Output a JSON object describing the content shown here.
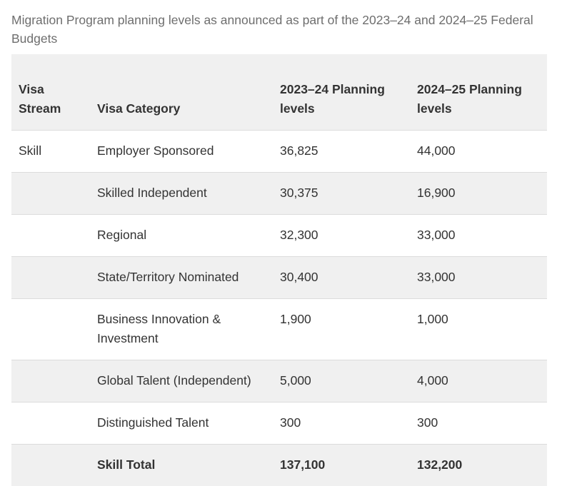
{
  "caption": "Migration Program planning levels as announced as part of the 2023–24 and 2024–25 Federal Budgets",
  "table": {
    "headers": [
      "Visa Stream",
      "Visa Category",
      "2023–24 Planning levels",
      "2024–25 Planning levels"
    ],
    "rows": [
      [
        "Skill",
        "Employer Sponsored",
        "36,825",
        "44,000"
      ],
      [
        "",
        "Skilled Independent",
        "30,375",
        "16,900"
      ],
      [
        "",
        "Regional",
        "32,300",
        "33,000"
      ],
      [
        "",
        "State/Territory Nominated",
        "30,400",
        "33,000"
      ],
      [
        "",
        "Business Innovation & Investment",
        "1,900",
        "1,000"
      ],
      [
        "",
        "Global Talent (Independent)",
        "5,000",
        "4,000"
      ],
      [
        "",
        "Distinguished Talent",
        "300",
        "300"
      ]
    ],
    "total": [
      "",
      "Skill Total",
      "137,100",
      "132,200"
    ]
  }
}
